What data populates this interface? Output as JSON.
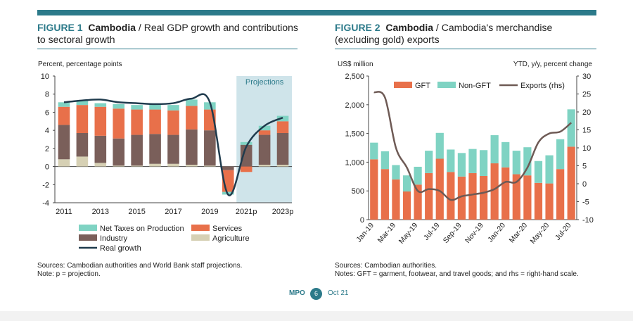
{
  "figures": [
    {
      "num_label": "FIGURE 1",
      "country": "Cambodia",
      "title_rest": " / Real GDP growth and contributions to sectoral growth"
    },
    {
      "num_label": "FIGURE 2",
      "country": "Cambodia",
      "title_rest": " / Cambodia's merchandise (excluding gold) exports"
    }
  ],
  "notes": {
    "fig1_source": "Sources: Cambodian authorities and World Bank staff projections.",
    "fig1_note": "Note: p = projection.",
    "fig2_source": "Sources: Cambodian authorities.",
    "fig2_note": "Notes: GFT = garment, footwear, and travel goods; and rhs = right-hand scale."
  },
  "footer": {
    "brand": "MPO",
    "page": "6",
    "date": "Oct 21"
  },
  "colors": {
    "accent": "#2c7a8a",
    "net_taxes": "#7fd3c3",
    "services": "#e8704a",
    "industry": "#7a5f5a",
    "agriculture": "#d6d0b4",
    "real_growth": "#1f3b4d",
    "exports_line": "#6e5a55",
    "projection_band": "#cfe4ea"
  },
  "chart_data": [
    {
      "type": "bar",
      "stacked": true,
      "ylabel": "Percent, percentage points",
      "ylim": [
        -4,
        10
      ],
      "yticks": [
        -4,
        -2,
        0,
        2,
        4,
        6,
        8,
        10
      ],
      "categories": [
        "2011",
        "2012",
        "2013",
        "2014",
        "2015",
        "2016",
        "2017",
        "2018",
        "2019",
        "2020",
        "2021p",
        "2022p",
        "2023p"
      ],
      "xtick_labels": [
        "2011",
        "",
        "2013",
        "",
        "2015",
        "",
        "2017",
        "",
        "2019",
        "",
        "2021p",
        "",
        "2023p"
      ],
      "projection_label": "Projections",
      "projection_start_index": 10,
      "series": [
        {
          "name": "Agriculture",
          "values": [
            0.8,
            1.1,
            0.4,
            0.1,
            0.1,
            0.3,
            0.3,
            0.2,
            0.1,
            0.0,
            0.0,
            0.2,
            0.2
          ]
        },
        {
          "name": "Industry",
          "values": [
            3.8,
            2.6,
            3.0,
            3.0,
            3.4,
            3.3,
            3.2,
            3.9,
            3.9,
            -0.4,
            2.4,
            3.3,
            3.5
          ]
        },
        {
          "name": "Services",
          "values": [
            2.0,
            3.1,
            3.2,
            3.3,
            2.8,
            2.7,
            2.7,
            2.6,
            2.3,
            -2.4,
            -0.6,
            0.5,
            1.3
          ]
        },
        {
          "name": "Net Taxes on Production",
          "values": [
            0.5,
            0.5,
            0.4,
            0.5,
            0.5,
            0.6,
            0.6,
            0.7,
            0.8,
            -0.3,
            0.3,
            0.5,
            0.6
          ]
        }
      ],
      "line": {
        "name": "Real growth",
        "values": [
          7.1,
          7.3,
          7.4,
          7.1,
          7.0,
          6.9,
          7.0,
          7.5,
          7.1,
          -3.1,
          2.2,
          4.5,
          5.4
        ]
      },
      "legend": [
        "Net Taxes on Production",
        "Services",
        "Industry",
        "Agriculture",
        "Real growth"
      ],
      "legend_position": "bottom"
    },
    {
      "type": "bar",
      "stacked": true,
      "ylabel": "US$ million",
      "ylabel_right": "YTD, y/y, percent change",
      "ylim": [
        0,
        2500
      ],
      "yticks": [
        0,
        500,
        1000,
        1500,
        2000,
        2500
      ],
      "ytick_labels": [
        "0",
        "500",
        "1,000",
        "1,500",
        "2,000",
        "2,500"
      ],
      "ylim_right": [
        -10,
        30
      ],
      "yticks_right": [
        -10,
        -5,
        0,
        5,
        10,
        15,
        20,
        25,
        30
      ],
      "categories": [
        "Jan-19",
        "Feb-19",
        "Mar-19",
        "Apr-19",
        "May-19",
        "Jun-19",
        "Jul-19",
        "Aug-19",
        "Sep-19",
        "Oct-19",
        "Nov-19",
        "Dec-19",
        "Jan-20",
        "Feb-20",
        "Mar-20",
        "Apr-20",
        "May-20",
        "Jun-20",
        "Jul-20"
      ],
      "xtick_labels": [
        "Jan-19",
        "",
        "Mar-19",
        "",
        "May-19",
        "",
        "Jul-19",
        "",
        "Sep-19",
        "",
        "Nov-19",
        "",
        "Jan-20",
        "",
        "Mar-20",
        "",
        "May-20",
        "",
        "Jul-20"
      ],
      "series": [
        {
          "name": "GFT",
          "values": [
            1050,
            880,
            700,
            490,
            610,
            810,
            1060,
            830,
            750,
            810,
            760,
            980,
            910,
            790,
            770,
            640,
            630,
            880,
            1270
          ]
        },
        {
          "name": "Non-GFT",
          "values": [
            290,
            310,
            250,
            280,
            310,
            390,
            450,
            390,
            410,
            420,
            450,
            490,
            440,
            410,
            490,
            380,
            490,
            520,
            650
          ]
        }
      ],
      "line": {
        "name": "Exports (rhs)",
        "axis": "right",
        "values": [
          25.5,
          24.0,
          10.0,
          4.5,
          -2.0,
          -1.5,
          -2.0,
          -4.5,
          -3.5,
          -3.0,
          -2.5,
          -1.5,
          0.5,
          0.5,
          4.5,
          11.5,
          14.0,
          14.5,
          17.0
        ]
      },
      "legend": [
        "GFT",
        "Non-GFT",
        "Exports (rhs)"
      ],
      "legend_position": "top"
    }
  ]
}
